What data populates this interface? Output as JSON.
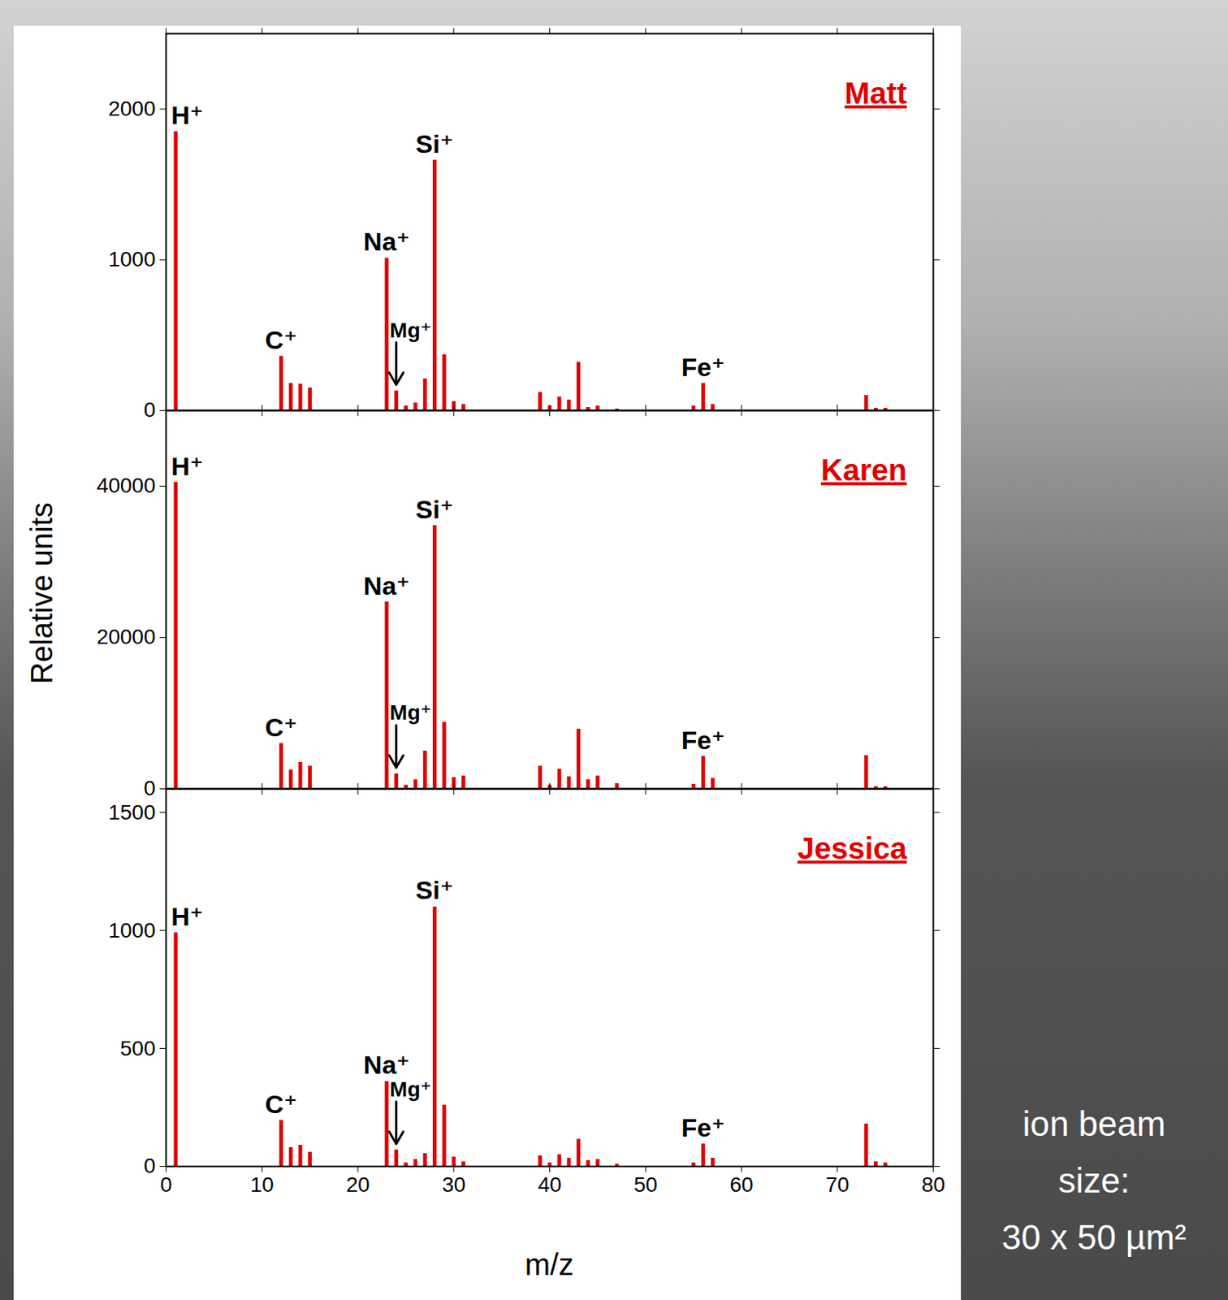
{
  "chart_data": [
    {
      "type": "bar",
      "title": "Matt",
      "color": "#e00000",
      "x": [
        1,
        12,
        13,
        14,
        15,
        23,
        24,
        25,
        26,
        27,
        28,
        29,
        30,
        31,
        39,
        40,
        41,
        42,
        43,
        44,
        45,
        47,
        55,
        56,
        57,
        73,
        74,
        75
      ],
      "values": [
        1850,
        360,
        180,
        175,
        150,
        1010,
        130,
        30,
        50,
        210,
        1660,
        370,
        60,
        40,
        120,
        30,
        90,
        70,
        320,
        20,
        30,
        10,
        30,
        180,
        40,
        100,
        15,
        15
      ],
      "xlim": [
        0,
        80
      ],
      "xticks": [
        0,
        10,
        20,
        30,
        40,
        50,
        60,
        70,
        80
      ],
      "ylim": [
        0,
        2500
      ],
      "yticks": [
        0,
        1000,
        2000
      ],
      "tick_labels": "y",
      "annotations": [
        {
          "text": "H⁺",
          "x": 1
        },
        {
          "text": "C⁺",
          "x": 12
        },
        {
          "text": "Na⁺",
          "x": 23
        },
        {
          "text": "Mg⁺",
          "x": 24,
          "arrow": true
        },
        {
          "text": "Si⁺",
          "x": 28
        },
        {
          "text": "Fe⁺",
          "x": 56
        }
      ]
    },
    {
      "type": "bar",
      "title": "Karen",
      "color": "#e00000",
      "ylabel": "Relative units",
      "x": [
        1,
        12,
        13,
        14,
        15,
        23,
        24,
        25,
        26,
        27,
        28,
        29,
        30,
        31,
        39,
        40,
        41,
        42,
        43,
        44,
        45,
        47,
        55,
        56,
        57,
        73,
        74,
        75
      ],
      "values": [
        40500,
        6000,
        2500,
        3500,
        3000,
        24700,
        2000,
        500,
        1200,
        5000,
        34800,
        8800,
        1500,
        1700,
        3000,
        500,
        2600,
        1600,
        7900,
        1200,
        1700,
        700,
        600,
        4300,
        1400,
        4400,
        300,
        300
      ],
      "xlim": [
        0,
        80
      ],
      "xticks": [
        0,
        10,
        20,
        30,
        40,
        50,
        60,
        70,
        80
      ],
      "ylim": [
        0,
        50000
      ],
      "yticks": [
        0,
        20000,
        40000
      ],
      "tick_labels": "y",
      "annotations": [
        {
          "text": "H⁺",
          "x": 1
        },
        {
          "text": "C⁺",
          "x": 12
        },
        {
          "text": "Na⁺",
          "x": 23
        },
        {
          "text": "Mg⁺",
          "x": 24,
          "arrow": true
        },
        {
          "text": "Si⁺",
          "x": 28
        },
        {
          "text": "Fe⁺",
          "x": 56
        }
      ]
    },
    {
      "type": "bar",
      "title": "Jessica",
      "color": "#e00000",
      "xlabel": "m/z",
      "x": [
        1,
        12,
        13,
        14,
        15,
        23,
        24,
        25,
        26,
        27,
        28,
        29,
        30,
        31,
        39,
        40,
        41,
        42,
        43,
        44,
        45,
        47,
        55,
        56,
        57,
        73,
        74,
        75
      ],
      "values": [
        990,
        195,
        80,
        90,
        60,
        360,
        70,
        15,
        30,
        55,
        1100,
        260,
        40,
        20,
        45,
        15,
        50,
        35,
        115,
        25,
        30,
        10,
        15,
        95,
        35,
        180,
        20,
        15
      ],
      "xlim": [
        0,
        80
      ],
      "xticks": [
        0,
        10,
        20,
        30,
        40,
        50,
        60,
        70,
        80
      ],
      "ylim": [
        0,
        1600
      ],
      "yticks": [
        0,
        500,
        1000,
        1500
      ],
      "annotations": [
        {
          "text": "H⁺",
          "x": 1
        },
        {
          "text": "C⁺",
          "x": 12
        },
        {
          "text": "Na⁺",
          "x": 23
        },
        {
          "text": "Mg⁺",
          "x": 24,
          "arrow": true
        },
        {
          "text": "Si⁺",
          "x": 28
        },
        {
          "text": "Fe⁺",
          "x": 56
        }
      ]
    }
  ],
  "annotation": [
    "ion beam",
    "size:",
    "30 x 50 µm²"
  ]
}
